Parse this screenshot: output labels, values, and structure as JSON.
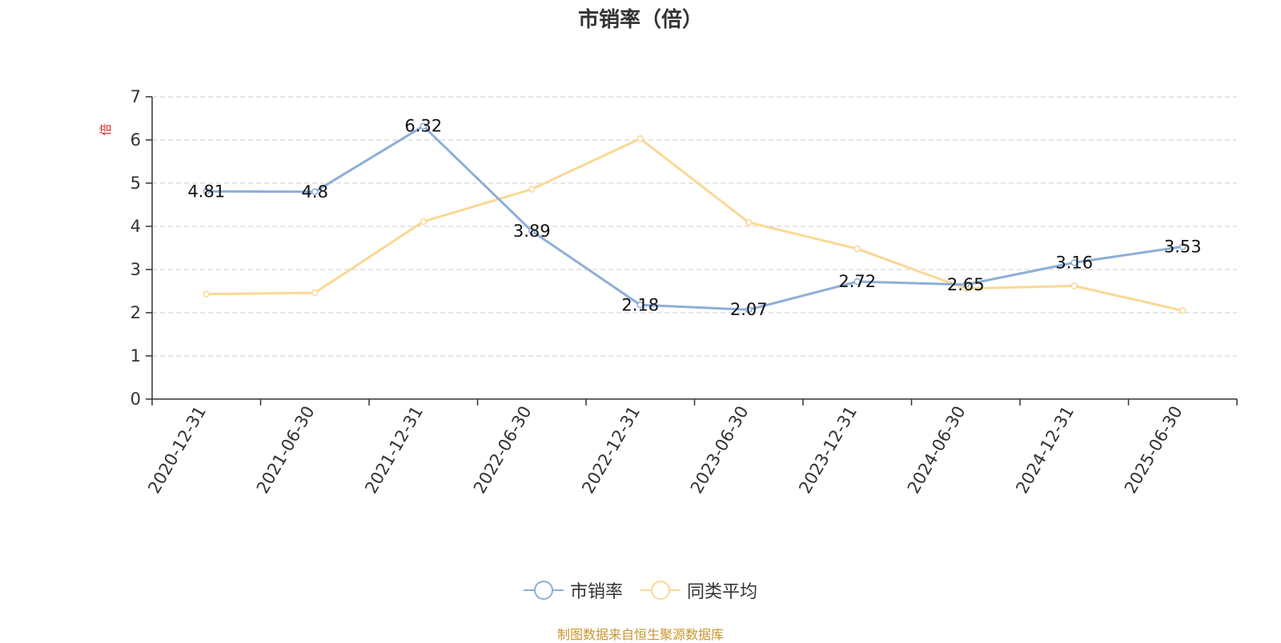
{
  "chart_data": {
    "type": "line",
    "title": "市销率（倍）",
    "ylabel": "倍",
    "xlabel": "",
    "ylim": [
      0,
      7
    ],
    "yticks": [
      0,
      1,
      2,
      3,
      4,
      5,
      6,
      7
    ],
    "grid": true,
    "legend_position": "bottom-center",
    "categories": [
      "2020-12-31",
      "2021-06-30",
      "2021-12-31",
      "2022-06-30",
      "2022-12-31",
      "2023-06-30",
      "2023-12-31",
      "2024-06-30",
      "2024-12-31",
      "2025-06-30"
    ],
    "series": [
      {
        "name": "市销率",
        "color": "#8eaed8",
        "labeled": true,
        "values": [
          4.81,
          4.8,
          6.32,
          3.89,
          2.18,
          2.07,
          2.72,
          2.65,
          3.16,
          3.53
        ],
        "labels": [
          "4.81",
          "4.8",
          "6.32",
          "3.89",
          "2.18",
          "2.07",
          "2.72",
          "2.65",
          "3.16",
          "3.53"
        ]
      },
      {
        "name": "同类平均",
        "color": "#fad894",
        "labeled": false,
        "values": [
          2.43,
          2.46,
          4.11,
          4.86,
          6.03,
          4.09,
          3.48,
          2.56,
          2.62,
          2.05
        ]
      }
    ]
  },
  "footer": {
    "source": "制图数据来自恒生聚源数据库",
    "color": "#c8962e"
  },
  "colors": {
    "axis": "#333333",
    "grid": "#cccccc",
    "ylabel": "#e02020"
  }
}
